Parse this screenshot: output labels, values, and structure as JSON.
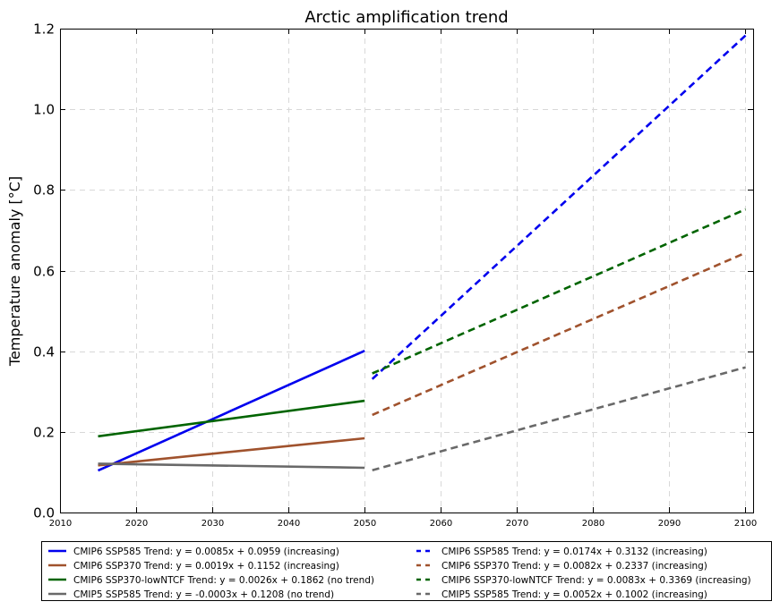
{
  "chart_data": {
    "type": "line",
    "title": "Arctic amplification trend",
    "xlabel": "",
    "ylabel": "Temperature anomaly [°C]",
    "xlim": [
      2010,
      2101
    ],
    "ylim": [
      0.0,
      1.2
    ],
    "xticks": [
      "2010",
      "2020",
      "2030",
      "2040",
      "2050",
      "2060",
      "2070",
      "2080",
      "2090",
      "2100"
    ],
    "yticks": [
      "0.0",
      "0.2",
      "0.4",
      "0.6",
      "0.8",
      "1.0",
      "1.2"
    ],
    "grid": true,
    "legend_position": "bottom",
    "series": [
      {
        "name": "CMIP6 SSP585 Trend: y = 0.0085x + 0.0959 (increasing)",
        "color": "#0000ee",
        "dash": "solid",
        "x": [
          2015,
          2050
        ],
        "y": [
          0.104,
          0.401
        ]
      },
      {
        "name": "CMIP6 SSP370 Trend: y = 0.0019x + 0.1152 (increasing)",
        "color": "#a0522d",
        "dash": "solid",
        "x": [
          2015,
          2050
        ],
        "y": [
          0.117,
          0.184
        ]
      },
      {
        "name": "CMIP6 SSP370-lowNTCF Trend: y = 0.0026x + 0.1862 (no trend)",
        "color": "#006400",
        "dash": "solid",
        "x": [
          2015,
          2050
        ],
        "y": [
          0.189,
          0.277
        ]
      },
      {
        "name": "CMIP5 SSP585 Trend: y = -0.0003x + 0.1208 (no trend)",
        "color": "#696969",
        "dash": "solid",
        "x": [
          2015,
          2050
        ],
        "y": [
          0.121,
          0.111
        ]
      },
      {
        "name": "CMIP6 SSP585 Trend: y = 0.0174x + 0.3132 (increasing)",
        "color": "#0000ee",
        "dash": "dashed",
        "x": [
          2051,
          2100
        ],
        "y": [
          0.331,
          1.183
        ]
      },
      {
        "name": "CMIP6 SSP370 Trend: y = 0.0082x + 0.2337 (increasing)",
        "color": "#a0522d",
        "dash": "dashed",
        "x": [
          2051,
          2100
        ],
        "y": [
          0.242,
          0.644
        ]
      },
      {
        "name": "CMIP6 SSP370-lowNTCF Trend: y = 0.0083x + 0.3369 (increasing)",
        "color": "#006400",
        "dash": "dashed",
        "x": [
          2051,
          2100
        ],
        "y": [
          0.345,
          0.752
        ]
      },
      {
        "name": "CMIP5 SSP585 Trend: y = 0.0052x + 0.1002 (increasing)",
        "color": "#696969",
        "dash": "dashed",
        "x": [
          2051,
          2100
        ],
        "y": [
          0.105,
          0.36
        ]
      }
    ]
  }
}
